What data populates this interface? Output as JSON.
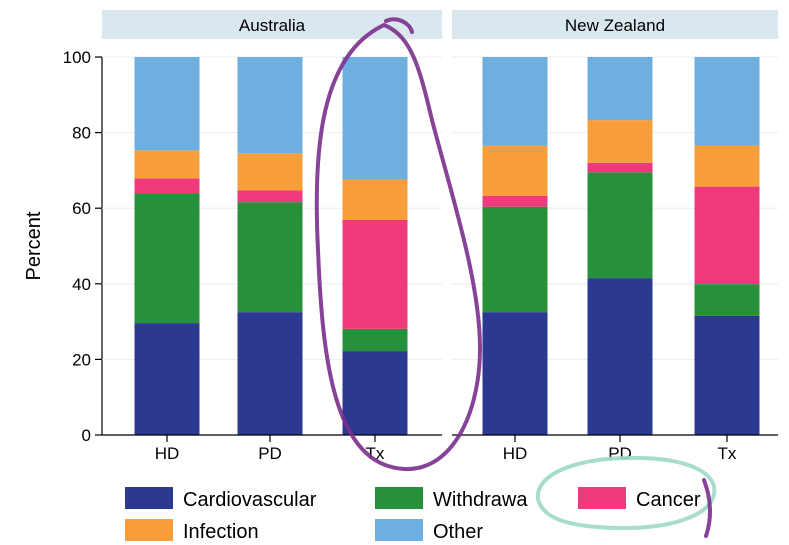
{
  "chart_data": {
    "type": "bar",
    "stacked": true,
    "ylabel": "Percent",
    "ylim": [
      0,
      100
    ],
    "yticks": [
      0,
      20,
      40,
      60,
      80,
      100
    ],
    "grid": true,
    "legend_position": "bottom",
    "categories": [
      "HD",
      "PD",
      "Tx"
    ],
    "panels": [
      {
        "title": "Australia",
        "series": [
          {
            "name": "Cardiovascular",
            "values": [
              29.6,
              32.5,
              22.2
            ]
          },
          {
            "name": "Withdrawal",
            "values": [
              34.4,
              29.1,
              5.9
            ]
          },
          {
            "name": "Cancer",
            "values": [
              3.9,
              3.1,
              28.8
            ]
          },
          {
            "name": "Infection",
            "values": [
              7.4,
              9.8,
              10.7
            ]
          },
          {
            "name": "Other",
            "values": [
              24.7,
              25.5,
              32.4
            ]
          }
        ]
      },
      {
        "title": "New Zealand",
        "series": [
          {
            "name": "Cardiovascular",
            "values": [
              32.5,
              41.5,
              31.5
            ]
          },
          {
            "name": "Withdrawal",
            "values": [
              27.9,
              28.0,
              8.4
            ]
          },
          {
            "name": "Cancer",
            "values": [
              2.9,
              2.5,
              25.8
            ]
          },
          {
            "name": "Infection",
            "values": [
              13.2,
              11.3,
              10.9
            ]
          },
          {
            "name": "Other",
            "values": [
              23.5,
              16.7,
              23.4
            ]
          }
        ]
      }
    ],
    "legend": [
      {
        "label": "Cardiovascular",
        "color": "#2b3990"
      },
      {
        "label": "Withdrawa",
        "color": "#27903b"
      },
      {
        "label": "Cancer",
        "color": "#ee3a7d"
      },
      {
        "label": "Infection",
        "color": "#f79e3a"
      },
      {
        "label": "Other",
        "color": "#6dafdf"
      }
    ],
    "colors": {
      "Cardiovascular": "#2b3990",
      "Withdrawal": "#27903b",
      "Cancer": "#ee3a7d",
      "Infection": "#f79e3a",
      "Other": "#6dafdf",
      "panel_header": "#dbe7ee",
      "annotation_purple": "#7a2f8c",
      "annotation_teal": "#9ed8c7"
    }
  }
}
